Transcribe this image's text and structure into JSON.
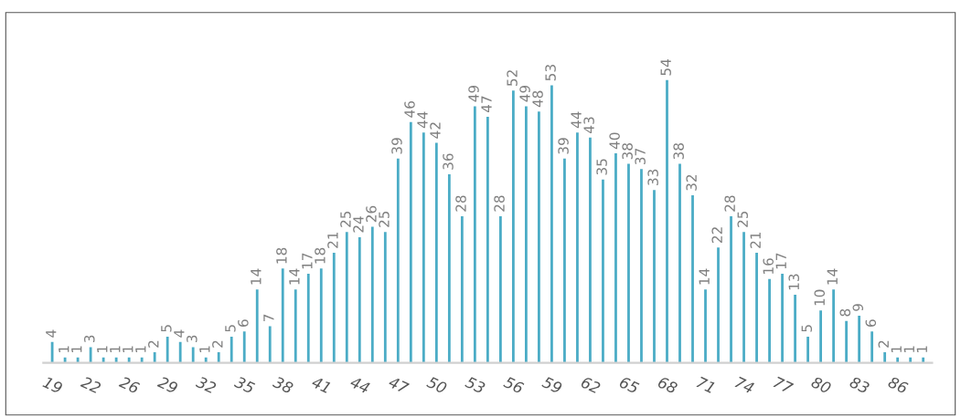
{
  "chart_data": {
    "type": "bar",
    "color": "#4bacc6",
    "categories": [
      "19",
      null,
      null,
      "22",
      null,
      null,
      "26",
      null,
      null,
      "29",
      null,
      null,
      "32",
      null,
      null,
      "35",
      null,
      null,
      "38",
      null,
      null,
      "41",
      null,
      null,
      "44",
      null,
      null,
      "47",
      null,
      null,
      "50",
      null,
      null,
      "53",
      null,
      null,
      "56",
      null,
      null,
      "59",
      null,
      null,
      "62",
      null,
      null,
      "65",
      null,
      null,
      "68",
      null,
      null,
      "71",
      null,
      null,
      "74",
      null,
      null,
      "77",
      null,
      null,
      "80",
      null,
      null,
      "83",
      null,
      null,
      "86",
      null,
      null
    ],
    "values": [
      4,
      1,
      1,
      3,
      1,
      1,
      1,
      1,
      2,
      5,
      4,
      3,
      1,
      2,
      5,
      6,
      14,
      7,
      18,
      14,
      17,
      18,
      21,
      25,
      24,
      26,
      25,
      39,
      46,
      44,
      42,
      36,
      28,
      49,
      47,
      28,
      52,
      49,
      48,
      53,
      39,
      44,
      43,
      35,
      40,
      38,
      37,
      33,
      54,
      38,
      32,
      14,
      22,
      28,
      25,
      21,
      16,
      17,
      13,
      5,
      10,
      14,
      8,
      9,
      6,
      2,
      1,
      1,
      1
    ],
    "data_labels": true,
    "grid": false,
    "legend": false
  }
}
